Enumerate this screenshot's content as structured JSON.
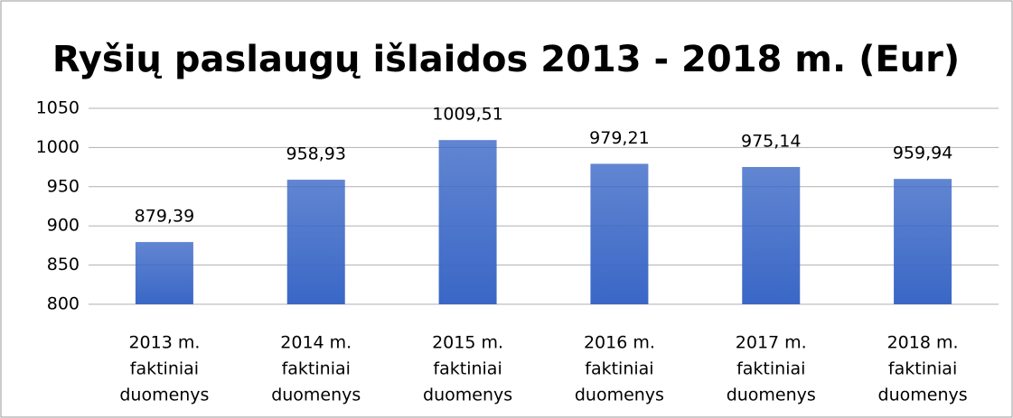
{
  "chart_data": {
    "type": "bar",
    "title": "Ryšių paslaugų išlaidos 2013 - 2018 m.  (Eur)",
    "categories": [
      [
        "2013 m.",
        "faktiniai",
        "duomenys"
      ],
      [
        "2014 m.",
        "faktiniai",
        "duomenys"
      ],
      [
        "2015 m.",
        "faktiniai",
        "duomenys"
      ],
      [
        "2016 m.",
        "faktiniai",
        "duomenys"
      ],
      [
        "2017 m.",
        "faktiniai",
        "duomenys"
      ],
      [
        "2018 m.",
        "faktiniai",
        "duomenys"
      ]
    ],
    "values": [
      879.39,
      958.93,
      1009.51,
      979.21,
      975.14,
      959.94
    ],
    "value_labels": [
      "879,39",
      "958,93",
      "1009,51",
      "979,21",
      "975,14",
      "959,94"
    ],
    "color": "#3a67c6",
    "ylim": [
      800,
      1050
    ],
    "yticks": [
      800,
      850,
      900,
      950,
      1000,
      1050
    ],
    "grid": true
  }
}
